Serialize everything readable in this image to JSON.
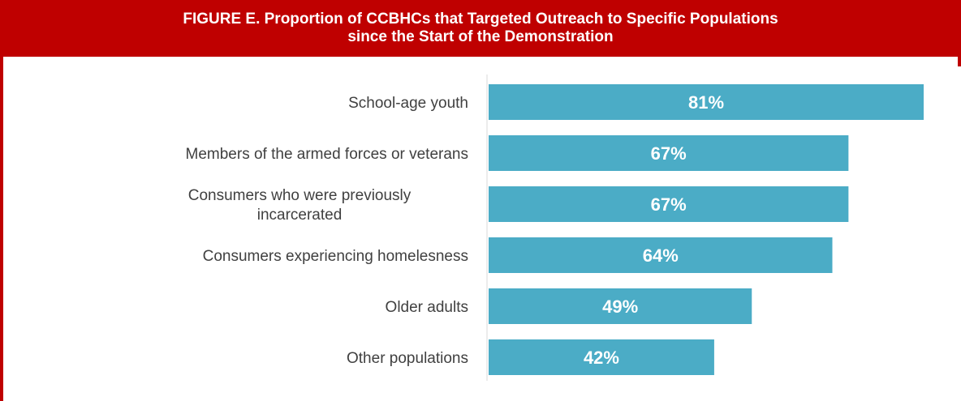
{
  "title": {
    "line1": "FIGURE E. Proportion of CCBHCs that Targeted Outreach to Specific Populations",
    "line2": "since the Start of the Demonstration"
  },
  "colors": {
    "header_bg": "#bf0000",
    "bar": "#4bacc6",
    "label_text": "#404040",
    "axis_line": "#d9d9d9"
  },
  "chart_data": {
    "type": "bar",
    "orientation": "horizontal",
    "title": "FIGURE E. Proportion of CCBHCs that Targeted Outreach to Specific Populations since the Start of the Demonstration",
    "categories": [
      [
        "School-age youth"
      ],
      [
        "Members of the armed forces or veterans"
      ],
      [
        "Consumers who were previously",
        "incarcerated"
      ],
      [
        "Consumers experiencing homelesness"
      ],
      [
        "Older adults"
      ],
      [
        "Other populations"
      ]
    ],
    "values": [
      81,
      67,
      67,
      64,
      49,
      42
    ],
    "value_labels": [
      "81%",
      "67%",
      "67%",
      "64%",
      "49%",
      "42%"
    ],
    "xlim": [
      0,
      81
    ],
    "grid": false,
    "legend": "none"
  }
}
